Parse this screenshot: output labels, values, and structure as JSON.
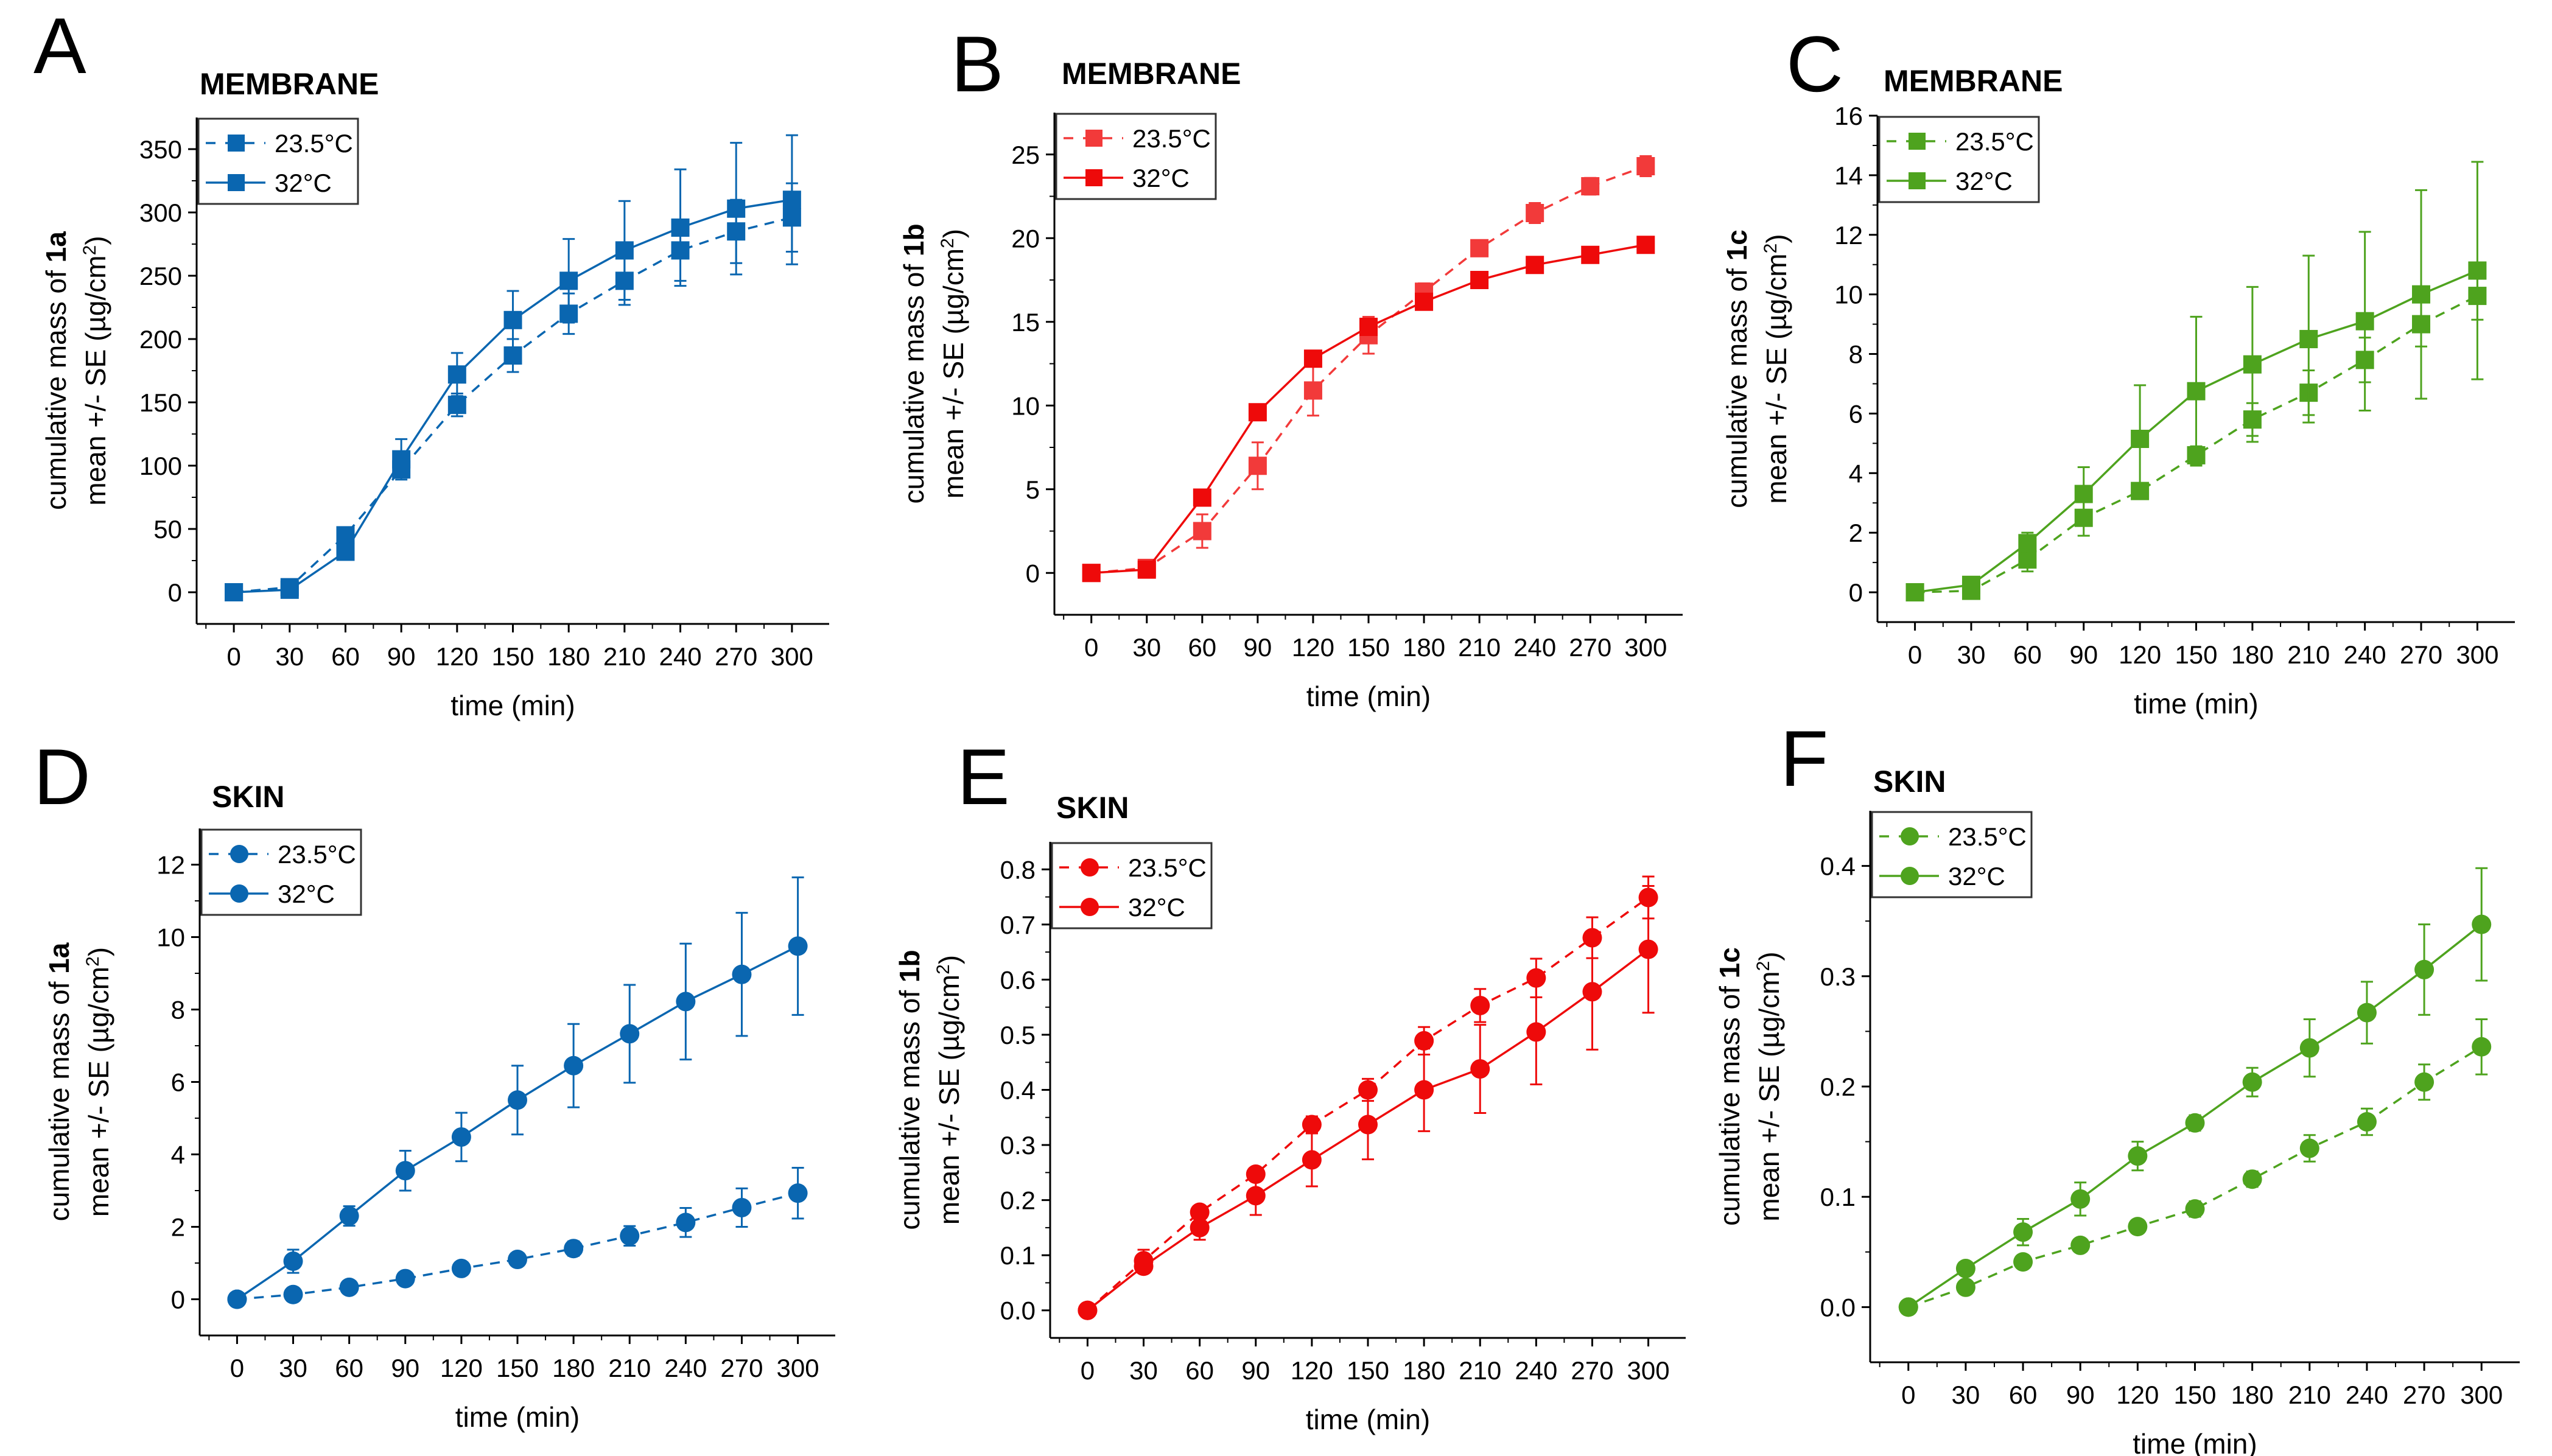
{
  "figure": {
    "x_ticks": [
      0,
      30,
      60,
      90,
      120,
      150,
      180,
      210,
      240,
      270,
      300
    ]
  },
  "chart_data": [
    {
      "id": "A",
      "type": "line",
      "panel_letter": "A",
      "title": "MEMBRANE",
      "xlabel": "time (min)",
      "ylabel_line1_prefix": "cumulative mass of ",
      "ylabel_line1_bold": "1a",
      "ylabel_line2": "mean +/- SE (µg/cm",
      "ylabel_sup": "2",
      "ylabel_end": ")",
      "xlim": [
        -20,
        320
      ],
      "ylim": [
        -25,
        375
      ],
      "yticks": [
        0,
        50,
        100,
        150,
        200,
        250,
        300,
        350
      ],
      "ytick_labels": [
        "0",
        "50",
        "100",
        "150",
        "200",
        "250",
        "300",
        "350"
      ],
      "grid": false,
      "legend": "top-left",
      "marker": "square",
      "x": [
        0,
        30,
        60,
        90,
        120,
        150,
        180,
        210,
        240,
        270,
        300
      ],
      "series": [
        {
          "name": "23.5°C",
          "dashed": true,
          "color": "#0a66b0",
          "values": [
            0,
            4,
            45,
            97,
            148,
            187,
            220,
            246,
            270,
            285,
            296
          ],
          "errors": [
            0,
            2,
            5,
            5,
            9,
            13,
            16,
            19,
            24,
            25,
            27
          ]
        },
        {
          "name": "32°C",
          "dashed": false,
          "color": "#0a66b0",
          "values": [
            0,
            2,
            32,
            105,
            172,
            215,
            246,
            270,
            288,
            303,
            310
          ],
          "errors": [
            0,
            2,
            3,
            16,
            17,
            23,
            33,
            39,
            46,
            52,
            51
          ]
        }
      ]
    },
    {
      "id": "B",
      "type": "line",
      "panel_letter": "B",
      "title": "MEMBRANE",
      "xlabel": "time (min)",
      "ylabel_line1_prefix": "cumulative mass of ",
      "ylabel_line1_bold": "1b",
      "ylabel_line2": "mean +/- SE (µg/cm",
      "ylabel_sup": "2",
      "ylabel_end": ")",
      "xlim": [
        -20,
        320
      ],
      "ylim": [
        -2.5,
        27.5
      ],
      "yticks": [
        0,
        5,
        10,
        15,
        20,
        25
      ],
      "ytick_labels": [
        "0",
        "5",
        "10",
        "15",
        "20",
        "25"
      ],
      "grid": false,
      "legend": "top-left",
      "marker": "square",
      "x": [
        0,
        30,
        60,
        90,
        120,
        150,
        180,
        210,
        240,
        270,
        300
      ],
      "series": [
        {
          "name": "23.5°C",
          "dashed": true,
          "color": "#f23a3a",
          "values": [
            0,
            0.3,
            2.5,
            6.4,
            10.9,
            14.2,
            16.8,
            19.4,
            21.5,
            23.1,
            24.3
          ],
          "errors": [
            0,
            0.2,
            1.0,
            1.4,
            1.5,
            1.1,
            0.5,
            0.3,
            0.6,
            0.5,
            0.6
          ]
        },
        {
          "name": "32°C",
          "dashed": false,
          "color": "#ee0a0a",
          "values": [
            0,
            0.2,
            4.5,
            9.6,
            12.8,
            14.7,
            16.2,
            17.5,
            18.4,
            19.0,
            19.6
          ],
          "errors": [
            0,
            0.1,
            0.1,
            0.1,
            0.1,
            0.1,
            0.2,
            0.1,
            0.1,
            0.1,
            0.1
          ]
        }
      ]
    },
    {
      "id": "C",
      "type": "line",
      "panel_letter": "C",
      "title": "MEMBRANE",
      "xlabel": "time (min)",
      "ylabel_line1_prefix": "cumulative mass of ",
      "ylabel_line1_bold": "1c",
      "ylabel_line2": "mean +/- SE (µg/cm",
      "ylabel_sup": "2",
      "ylabel_end": ")",
      "xlim": [
        -20,
        320
      ],
      "ylim": [
        -1,
        16
      ],
      "yticks": [
        0,
        2,
        4,
        6,
        8,
        10,
        12,
        14,
        16
      ],
      "ytick_labels": [
        "0",
        "2",
        "4",
        "6",
        "8",
        "10",
        "12",
        "14",
        "16"
      ],
      "grid": false,
      "legend": "top-left",
      "marker": "square",
      "x": [
        0,
        30,
        60,
        90,
        120,
        150,
        180,
        210,
        240,
        270,
        300
      ],
      "series": [
        {
          "name": "23.5°C",
          "dashed": true,
          "color": "#4ea31e",
          "values": [
            0,
            0.05,
            1.1,
            2.5,
            3.4,
            4.6,
            5.8,
            6.7,
            7.8,
            9.0,
            9.95
          ],
          "errors": [
            0,
            0.05,
            0.4,
            0.6,
            0.25,
            0.3,
            0.55,
            0.75,
            0.75,
            0.75,
            0.8
          ]
        },
        {
          "name": "32°C",
          "dashed": false,
          "color": "#4ea31e",
          "values": [
            0,
            0.25,
            1.65,
            3.3,
            5.15,
            6.75,
            7.65,
            8.5,
            9.1,
            10.0,
            10.8
          ],
          "errors": [
            0,
            0.05,
            0.35,
            0.9,
            1.8,
            2.5,
            2.6,
            2.8,
            3.0,
            3.5,
            3.65
          ]
        }
      ]
    },
    {
      "id": "D",
      "type": "line",
      "panel_letter": "D",
      "title": "SKIN",
      "xlabel": "time (min)",
      "ylabel_line1_prefix": "cumulative mass of ",
      "ylabel_line1_bold": "1a",
      "ylabel_line2": "mean +/- SE (µg/cm",
      "ylabel_sup": "2",
      "ylabel_end": ")",
      "xlim": [
        -20,
        320
      ],
      "ylim": [
        -1,
        13
      ],
      "yticks": [
        0,
        2,
        4,
        6,
        8,
        10,
        12
      ],
      "ytick_labels": [
        "0",
        "2",
        "4",
        "6",
        "8",
        "10",
        "12"
      ],
      "grid": false,
      "legend": "top-left",
      "marker": "circle",
      "x": [
        0,
        30,
        60,
        90,
        120,
        150,
        180,
        210,
        240,
        270,
        300
      ],
      "series": [
        {
          "name": "23.5°C",
          "dashed": true,
          "color": "#0a66b0",
          "values": [
            0,
            0.13,
            0.33,
            0.57,
            0.85,
            1.1,
            1.4,
            1.75,
            2.12,
            2.53,
            2.93
          ],
          "errors": [
            0,
            0.05,
            0.05,
            0.05,
            0.05,
            0.1,
            0.2,
            0.27,
            0.4,
            0.53,
            0.7
          ]
        },
        {
          "name": "32°C",
          "dashed": false,
          "color": "#0a66b0",
          "values": [
            0,
            1.05,
            2.3,
            3.55,
            4.48,
            5.5,
            6.45,
            7.33,
            8.22,
            8.97,
            9.75
          ],
          "errors": [
            0,
            0.32,
            0.27,
            0.55,
            0.67,
            0.95,
            1.15,
            1.35,
            1.6,
            1.7,
            1.9
          ]
        }
      ]
    },
    {
      "id": "E",
      "type": "line",
      "panel_letter": "E",
      "title": "SKIN",
      "xlabel": "time (min)",
      "ylabel_line1_prefix": "cumulative mass of ",
      "ylabel_line1_bold": "1b",
      "ylabel_line2": "mean +/- SE (µg/cm",
      "ylabel_sup": "2",
      "ylabel_end": ")",
      "xlim": [
        -20,
        320
      ],
      "ylim": [
        -0.05,
        0.85
      ],
      "yticks": [
        0,
        0.1,
        0.2,
        0.3,
        0.4,
        0.5,
        0.6,
        0.7,
        0.8
      ],
      "ytick_labels": [
        "0.0",
        "0.1",
        "0.2",
        "0.3",
        "0.4",
        "0.5",
        "0.6",
        "0.7",
        "0.8"
      ],
      "grid": false,
      "legend": "top-left",
      "marker": "circle",
      "x": [
        0,
        30,
        60,
        90,
        120,
        150,
        180,
        210,
        240,
        270,
        300
      ],
      "series": [
        {
          "name": "23.5°C",
          "dashed": true,
          "color": "#ee0a0a",
          "values": [
            0,
            0.09,
            0.178,
            0.247,
            0.337,
            0.4,
            0.489,
            0.553,
            0.603,
            0.676,
            0.749
          ],
          "errors": [
            0,
            0.02,
            0.01,
            0.01,
            0.015,
            0.02,
            0.025,
            0.03,
            0.035,
            0.037,
            0.038
          ]
        },
        {
          "name": "32°C",
          "dashed": false,
          "color": "#ee0a0a",
          "values": [
            0,
            0.08,
            0.15,
            0.208,
            0.273,
            0.337,
            0.4,
            0.438,
            0.505,
            0.578,
            0.655
          ],
          "errors": [
            0,
            0.01,
            0.022,
            0.035,
            0.048,
            0.063,
            0.075,
            0.08,
            0.095,
            0.105,
            0.115
          ]
        }
      ]
    },
    {
      "id": "F",
      "type": "line",
      "panel_letter": "F",
      "title": "SKIN",
      "xlabel": "time (min)",
      "ylabel_line1_prefix": "cumulative mass of ",
      "ylabel_line1_bold": "1c",
      "ylabel_line2": "mean +/- SE (µg/cm",
      "ylabel_sup": "2",
      "ylabel_end": ")",
      "xlim": [
        -20,
        320
      ],
      "ylim": [
        -0.05,
        0.45
      ],
      "yticks": [
        0,
        0.1,
        0.2,
        0.3,
        0.4
      ],
      "ytick_labels": [
        "0.0",
        "0.1",
        "0.2",
        "0.3",
        "0.4"
      ],
      "grid": false,
      "legend": "top-left",
      "marker": "circle",
      "x": [
        0,
        30,
        60,
        90,
        120,
        150,
        180,
        210,
        240,
        270,
        300
      ],
      "series": [
        {
          "name": "23.5°C",
          "dashed": true,
          "color": "#4ea31e",
          "values": [
            0,
            0.018,
            0.041,
            0.056,
            0.073,
            0.089,
            0.116,
            0.144,
            0.168,
            0.204,
            0.236
          ],
          "errors": [
            0,
            0.002,
            0.002,
            0.003,
            0.003,
            0.007,
            0.007,
            0.012,
            0.012,
            0.016,
            0.025
          ]
        },
        {
          "name": "32°C",
          "dashed": false,
          "color": "#4ea31e",
          "values": [
            0,
            0.035,
            0.068,
            0.098,
            0.137,
            0.167,
            0.204,
            0.235,
            0.267,
            0.306,
            0.347
          ],
          "errors": [
            0,
            0.006,
            0.012,
            0.015,
            0.013,
            0.007,
            0.013,
            0.026,
            0.028,
            0.041,
            0.051
          ]
        }
      ]
    }
  ]
}
